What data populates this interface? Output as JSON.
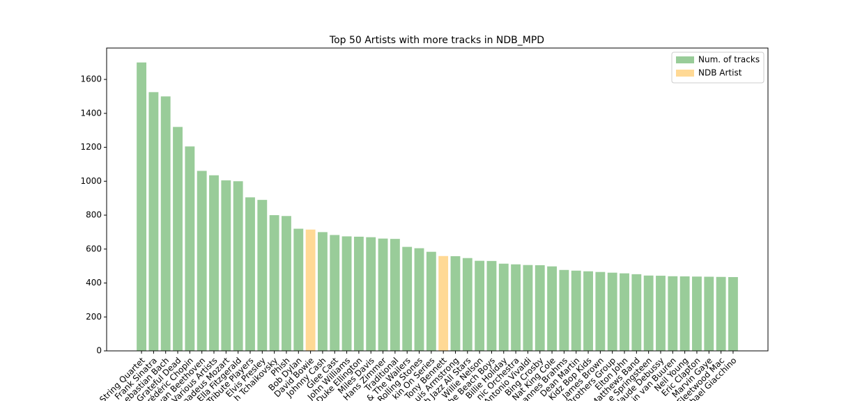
{
  "chart_data": {
    "type": "bar",
    "title": "Top 50 Artists with more tracks in NDB_MPD",
    "categories": [
      "String Quartet",
      "Frank Sinatra",
      "ebastian Bach",
      "Grateful Dead",
      "rédéric Chopin",
      "van Beethoven",
      "Various Artists",
      "madeus Mozart",
      "Ella Fitzgerald",
      "Tribute Players",
      "Elvis Presley",
      "h Tchaikovsky",
      "Phish",
      "Bob Dylan",
      "David Bowie",
      "Johnny Cash",
      "Glee Cast",
      "John Williams",
      "Duke Ellington",
      "Miles Davis",
      "Hans Zimmer",
      "Traditional",
      "& The Wailers",
      "Rolling Stones",
      "kin On Series",
      "Tony Bennett",
      "uis Armstrong",
      "h Jazz All Stars",
      "Willie Nelson",
      "he Beach Boys",
      "Billie Holiday",
      "nic Orchestra",
      "Antonio Vivaldi",
      "Bing Crosby",
      "Nat King Cole",
      "annes Brahms",
      "Dean Martin",
      "Kidz Bop Kids",
      "James Brown",
      "Brothers Group",
      "Elton John",
      "Matthews Band",
      "e Springsteen",
      "laude Debussy",
      "in van Buuren",
      "Neil Young",
      "Eric Clapton",
      "Marvin Gaye",
      "Fleetwood Mac",
      "hael Giacchino"
    ],
    "series": [
      {
        "name": "Num. of tracks",
        "color": "#99cc99",
        "values": [
          1700,
          1525,
          1500,
          1320,
          1205,
          1061,
          1035,
          1005,
          1000,
          905,
          890,
          800,
          795,
          720,
          null,
          700,
          683,
          675,
          673,
          670,
          662,
          660,
          613,
          605,
          584,
          null,
          558,
          547,
          531,
          530,
          514,
          510,
          506,
          505,
          498,
          477,
          473,
          469,
          465,
          461,
          457,
          452,
          444,
          443,
          440,
          439,
          438,
          437,
          436,
          435
        ]
      },
      {
        "name": "NDB Artist",
        "color": "#ffd995",
        "values": [
          null,
          null,
          null,
          null,
          null,
          null,
          null,
          null,
          null,
          null,
          null,
          null,
          null,
          null,
          715,
          null,
          null,
          null,
          null,
          null,
          null,
          null,
          null,
          null,
          null,
          559,
          null,
          null,
          null,
          null,
          null,
          null,
          null,
          null,
          null,
          null,
          null,
          null,
          null,
          null,
          null,
          null,
          null,
          null,
          null,
          null,
          null,
          null,
          null,
          null
        ]
      }
    ],
    "ylim": [
      0,
      1785
    ],
    "yticks": [
      0,
      200,
      400,
      600,
      800,
      1000,
      1200,
      1400,
      1600
    ],
    "legend": "upper right"
  }
}
